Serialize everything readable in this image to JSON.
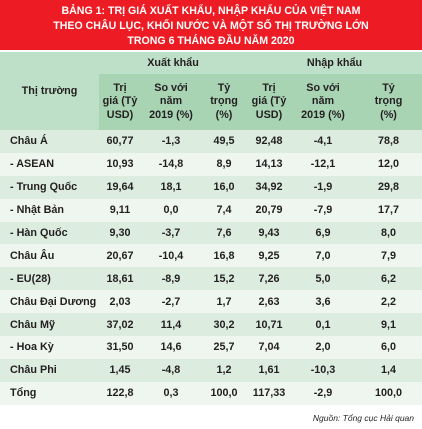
{
  "title": {
    "line1": "BẢNG 1: TRỊ GIÁ XUẤT KHẨU, NHẬP KHẨU CỦA VIỆT NAM",
    "line2": "THEO CHÂU LỤC, KHỐI NƯỚC VÀ MỘT SỐ THỊ TRƯỜNG LỚN",
    "line3": "TRONG 6 THÁNG ĐẦU NĂM 2020"
  },
  "header": {
    "market": "Thị trường",
    "export_group": "Xuất khẩu",
    "import_group": "Nhập khẩu",
    "value": [
      "Trị",
      "giá (Tỷ",
      "USD)"
    ],
    "vs2019": [
      "So với",
      "năm",
      "2019 (%)"
    ],
    "share": [
      "Tỷ",
      "trọng",
      "(%)"
    ]
  },
  "rows": [
    {
      "name": "Châu Á",
      "ex_val": "60,77",
      "ex_chg": "-1,3",
      "ex_share": "49,5",
      "im_val": "92,48",
      "im_chg": "-4,1",
      "im_share": "78,8"
    },
    {
      "name": "- ASEAN",
      "ex_val": "10,93",
      "ex_chg": "-14,8",
      "ex_share": "8,9",
      "im_val": "14,13",
      "im_chg": "-12,1",
      "im_share": "12,0"
    },
    {
      "name": "- Trung Quốc",
      "ex_val": "19,64",
      "ex_chg": "18,1",
      "ex_share": "16,0",
      "im_val": "34,92",
      "im_chg": "-1,9",
      "im_share": "29,8"
    },
    {
      "name": "- Nhật Bản",
      "ex_val": "9,11",
      "ex_chg": "0,0",
      "ex_share": "7,4",
      "im_val": "20,79",
      "im_chg": "-7,9",
      "im_share": "17,7"
    },
    {
      "name": "- Hàn Quốc",
      "ex_val": "9,30",
      "ex_chg": "-3,7",
      "ex_share": "7,6",
      "im_val": "9,43",
      "im_chg": "6,9",
      "im_share": "8,0"
    },
    {
      "name": "Châu Âu",
      "ex_val": "20,67",
      "ex_chg": "-10,4",
      "ex_share": "16,8",
      "im_val": "9,25",
      "im_chg": "7,0",
      "im_share": "7,9"
    },
    {
      "name": "- EU(28)",
      "ex_val": "18,61",
      "ex_chg": "-8,9",
      "ex_share": "15,2",
      "im_val": "7,26",
      "im_chg": "5,0",
      "im_share": "6,2"
    },
    {
      "name": "Châu Đại Dương",
      "ex_val": "2,03",
      "ex_chg": "-2,7",
      "ex_share": "1,7",
      "im_val": "2,63",
      "im_chg": "3,6",
      "im_share": "2,2"
    },
    {
      "name": "Châu Mỹ",
      "ex_val": "37,02",
      "ex_chg": "11,4",
      "ex_share": "30,2",
      "im_val": "10,71",
      "im_chg": "0,1",
      "im_share": "9,1"
    },
    {
      "name": "- Hoa Kỳ",
      "ex_val": "31,50",
      "ex_chg": "14,6",
      "ex_share": "25,7",
      "im_val": "7,04",
      "im_chg": "2,0",
      "im_share": "6,0"
    },
    {
      "name": "Châu Phi",
      "ex_val": "1,45",
      "ex_chg": "-4,8",
      "ex_share": "1,2",
      "im_val": "1,61",
      "im_chg": "-10,3",
      "im_share": "1,4"
    },
    {
      "name": "Tổng",
      "ex_val": "122,8",
      "ex_chg": "0,3",
      "ex_share": "100,0",
      "im_val": "117,33",
      "im_chg": "-2,9",
      "im_share": "100,0"
    }
  ],
  "source": "Nguồn: Tổng cục Hải quan"
}
